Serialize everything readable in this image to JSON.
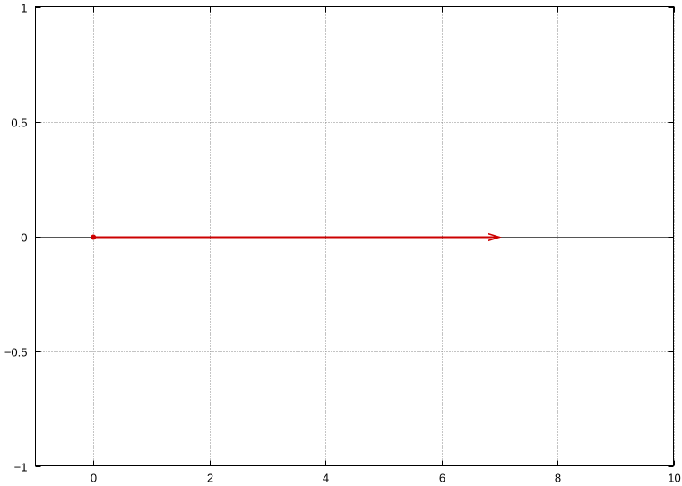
{
  "chart_data": {
    "type": "line",
    "title": "",
    "xlabel": "",
    "ylabel": "",
    "xlim": [
      -1,
      10
    ],
    "ylim": [
      -1,
      1
    ],
    "xticks": [
      0,
      2,
      4,
      6,
      8,
      10
    ],
    "yticks": [
      -1,
      -0.5,
      0,
      0.5,
      1
    ],
    "xtick_labels": [
      "0",
      "2",
      "4",
      "6",
      "8",
      "10"
    ],
    "ytick_labels": [
      "−1",
      "−0.5",
      "0",
      "0.5",
      "1"
    ],
    "grid": true,
    "zero_axis": true,
    "series": [
      {
        "kind": "vector",
        "start": [
          0,
          0
        ],
        "end": [
          7,
          0
        ],
        "start_marker": "point",
        "color": "#cc0000"
      }
    ],
    "colors": {
      "vector": "#cc0000",
      "grid": "#888888",
      "axes": "#000000"
    }
  }
}
